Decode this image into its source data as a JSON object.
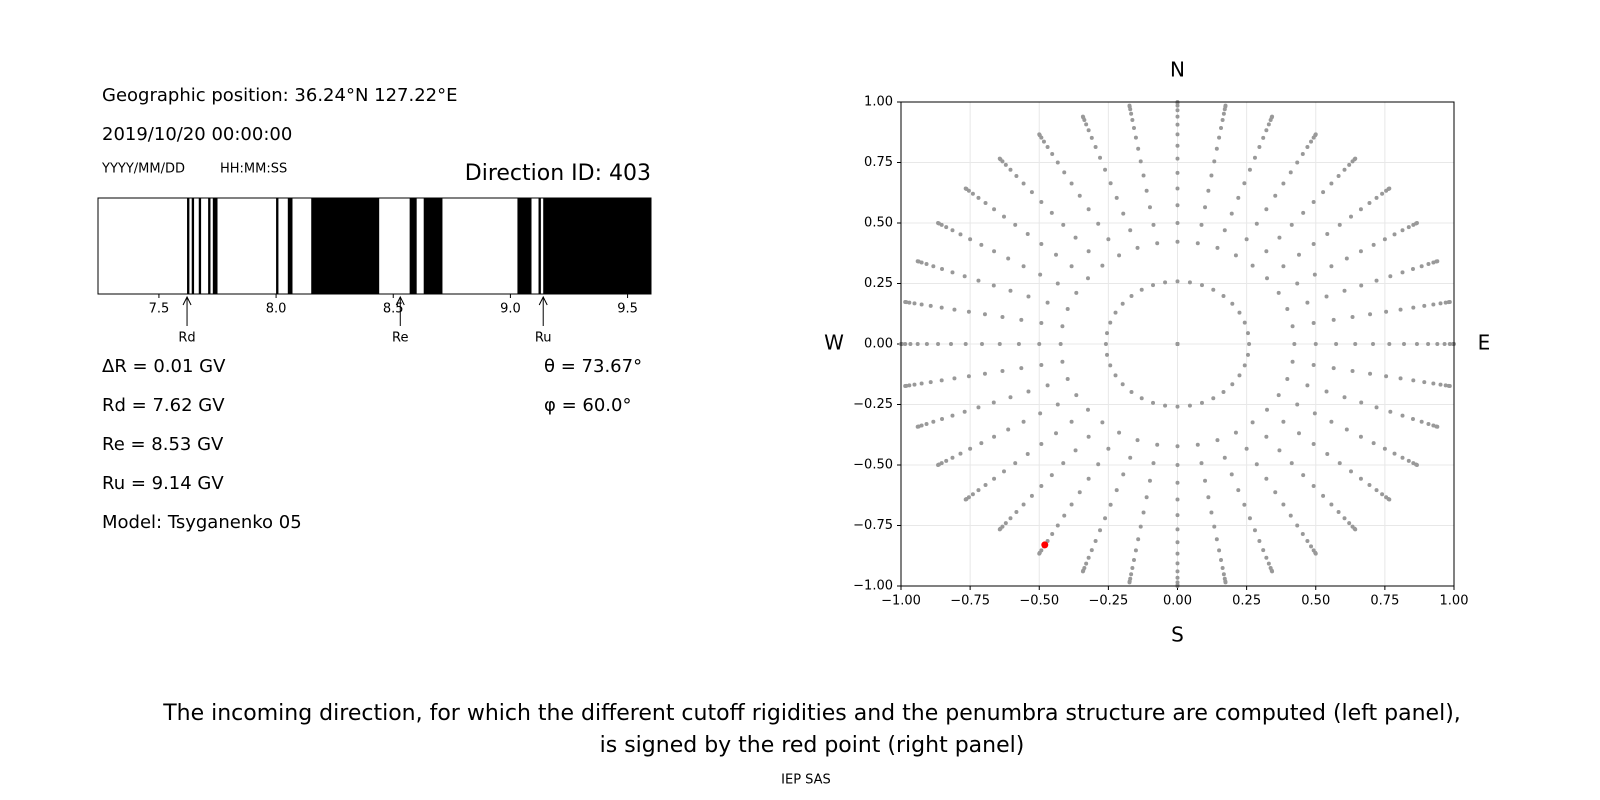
{
  "info": {
    "position": "Geographic position: 36.24°N 127.22°E",
    "datetime": "2019/10/20 00:00:00",
    "date_format": "YYYY/MM/DD",
    "time_format": "HH:MM:SS",
    "direction": "Direction ID: 403",
    "lines": [
      "ΔR = 0.01 GV",
      "Rd = 7.62 GV",
      "Re = 8.53 GV",
      "Ru = 9.14 GV",
      "Model: Tsyganenko 05"
    ],
    "angles": [
      "θ = 73.67°",
      "φ = 60.0°"
    ]
  },
  "caption": [
    "The incoming direction, for which the different cutoff rigidities and the penumbra structure are computed (left panel),",
    "is signed by the red point (right panel)"
  ],
  "footer": "IEP SAS",
  "chart_data": [
    {
      "type": "penumbra",
      "color": "#000000",
      "intervals": [
        [
          7.62,
          7.63
        ],
        [
          7.64,
          7.65
        ],
        [
          7.67,
          7.68
        ],
        [
          7.71,
          7.72
        ],
        [
          7.73,
          7.75
        ],
        [
          8.0,
          8.01
        ],
        [
          8.05,
          8.07
        ],
        [
          8.15,
          8.44
        ],
        [
          8.57,
          8.6
        ],
        [
          8.63,
          8.71
        ],
        [
          9.03,
          9.09
        ],
        [
          9.12,
          9.13
        ],
        [
          9.14,
          9.6
        ]
      ],
      "xlim": [
        7.24,
        9.6
      ],
      "xticks": [
        7.5,
        {
          "value": 8,
          "label": "8.0"
        },
        8.5,
        {
          "value": 9,
          "label": "9.0"
        },
        9.5
      ],
      "markers": [
        {
          "label": "Rd",
          "value": 7.62
        },
        {
          "label": "Re",
          "value": 8.53
        },
        {
          "label": "Ru",
          "value": 9.14
        }
      ]
    },
    {
      "type": "skymap",
      "color": "#999999",
      "grid": true,
      "azimuths": [
        0,
        10,
        20,
        30,
        40,
        50,
        60,
        70,
        80,
        90,
        100,
        110,
        120,
        130,
        140,
        150,
        160,
        170,
        180,
        190,
        200,
        210,
        220,
        230,
        240,
        250,
        260,
        270,
        280,
        290,
        300,
        310,
        320,
        330,
        340,
        350
      ],
      "zeniths": [
        0,
        15,
        25,
        30,
        35,
        40,
        45,
        50,
        55,
        60,
        65,
        70,
        75,
        80,
        85,
        90
      ],
      "highlight": {
        "x": -0.48,
        "y": -0.83,
        "color": "#ff0000"
      },
      "compass": [
        "N",
        "S",
        "E",
        "W"
      ],
      "xlim": [
        -1,
        1
      ],
      "ylim": [
        -1,
        1
      ],
      "xticks": [
        {
          "value": -1,
          "label": "−1.00"
        },
        {
          "value": -0.75,
          "label": "−0.75"
        },
        {
          "value": -0.5,
          "label": "−0.50"
        },
        {
          "value": -0.25,
          "label": "−0.25"
        },
        {
          "value": 0,
          "label": "0.00"
        },
        {
          "value": 0.25,
          "label": "0.25"
        },
        {
          "value": 0.5,
          "label": "0.50"
        },
        {
          "value": 0.75,
          "label": "0.75"
        },
        {
          "value": 1,
          "label": "1.00"
        }
      ],
      "yticks": [
        {
          "value": -1,
          "label": "−1.00"
        },
        {
          "value": -0.75,
          "label": "−0.75"
        },
        {
          "value": -0.5,
          "label": "−0.50"
        },
        {
          "value": -0.25,
          "label": "−0.25"
        },
        {
          "value": 0,
          "label": "0.00"
        },
        {
          "value": 0.25,
          "label": "0.25"
        },
        {
          "value": 0.5,
          "label": "0.50"
        },
        {
          "value": 0.75,
          "label": "0.75"
        },
        {
          "value": 1,
          "label": "1.00"
        }
      ]
    }
  ]
}
